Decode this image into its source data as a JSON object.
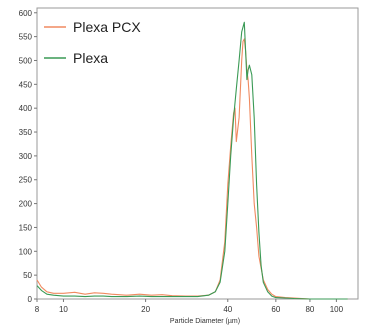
{
  "chart_data": {
    "type": "line",
    "title": "",
    "xlabel": "Particle Diameter (µm)",
    "ylabel": "",
    "x_scale": "log",
    "xlim": [
      8,
      120
    ],
    "ylim": [
      0,
      610
    ],
    "x_ticks": [
      8,
      10,
      20,
      40,
      60,
      80,
      100
    ],
    "y_ticks": [
      0,
      50,
      100,
      150,
      200,
      250,
      300,
      350,
      400,
      450,
      500,
      550,
      600
    ],
    "grid": false,
    "legend_position": "top-left",
    "series": [
      {
        "name": "Plexa PCX",
        "color": "#f08a60",
        "x": [
          8,
          8.3,
          8.7,
          9.2,
          10,
          11,
          12,
          13,
          14,
          15,
          17,
          19,
          21,
          23,
          25,
          28,
          31,
          34,
          36,
          37.5,
          39,
          40,
          41,
          42,
          42.5,
          43,
          44,
          45,
          45.5,
          46,
          46.5,
          47,
          47.5,
          48,
          49,
          50,
          51,
          52,
          54,
          56,
          58,
          60,
          65,
          70,
          80,
          90,
          100,
          110
        ],
        "y": [
          40,
          25,
          15,
          12,
          12,
          14,
          10,
          13,
          12,
          10,
          8,
          10,
          8,
          9,
          7,
          6,
          6,
          8,
          15,
          40,
          120,
          240,
          320,
          390,
          400,
          330,
          380,
          500,
          540,
          545,
          520,
          480,
          460,
          420,
          300,
          200,
          150,
          90,
          40,
          20,
          10,
          5,
          3,
          2,
          0,
          0,
          0,
          0
        ]
      },
      {
        "name": "Plexa",
        "color": "#3a9a55",
        "x": [
          8,
          8.3,
          8.7,
          9.2,
          10,
          11,
          12,
          13,
          14,
          15,
          17,
          19,
          21,
          23,
          25,
          28,
          31,
          34,
          36,
          37.5,
          39,
          40,
          41,
          42,
          43,
          44,
          45,
          46,
          46.5,
          47,
          47.5,
          48,
          49,
          50,
          51,
          52,
          53,
          54,
          56,
          58,
          60,
          65,
          70,
          80,
          90,
          100,
          110
        ],
        "y": [
          28,
          18,
          10,
          8,
          6,
          6,
          5,
          6,
          6,
          5,
          5,
          6,
          5,
          5,
          5,
          5,
          5,
          8,
          15,
          35,
          100,
          200,
          300,
          380,
          440,
          500,
          560,
          580,
          520,
          460,
          480,
          490,
          470,
          380,
          240,
          140,
          70,
          35,
          15,
          6,
          3,
          2,
          1,
          0,
          0,
          0,
          0
        ]
      }
    ]
  }
}
